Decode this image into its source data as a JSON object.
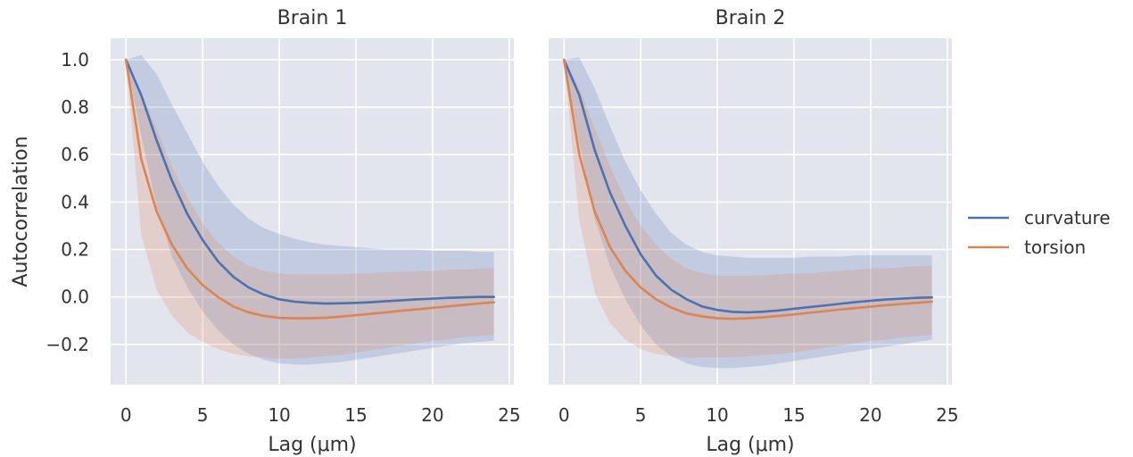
{
  "chart_data": [
    {
      "type": "line",
      "title": "Brain 1",
      "xlabel": "Lag (μm)",
      "ylabel": "Autocorrelation",
      "xlim": [
        -1.0,
        25.3
      ],
      "ylim": [
        -0.37,
        1.09
      ],
      "xticks": [
        0,
        5,
        10,
        15,
        20,
        25
      ],
      "yticks": [
        1.0,
        0.8,
        0.6,
        0.4,
        0.2,
        0.0,
        -0.2
      ],
      "ytick_labels": [
        "1.0",
        "0.8",
        "0.6",
        "0.4",
        "0.2",
        "0.0",
        "−0.2"
      ],
      "grid": true,
      "x": [
        0,
        1,
        2,
        3,
        4,
        5,
        6,
        7,
        8,
        9,
        10,
        11,
        12,
        13,
        14,
        15,
        16,
        17,
        18,
        19,
        20,
        21,
        22,
        23,
        24
      ],
      "series": [
        {
          "name": "curvature",
          "color": "#4c72b0",
          "values": [
            1.0,
            0.85,
            0.66,
            0.49,
            0.35,
            0.24,
            0.15,
            0.085,
            0.04,
            0.01,
            -0.01,
            -0.02,
            -0.025,
            -0.028,
            -0.027,
            -0.025,
            -0.022,
            -0.018,
            -0.014,
            -0.01,
            -0.007,
            -0.004,
            -0.002,
            0.0,
            0.0
          ],
          "band_upper": [
            1.0,
            1.02,
            0.94,
            0.81,
            0.69,
            0.57,
            0.47,
            0.39,
            0.33,
            0.29,
            0.265,
            0.245,
            0.23,
            0.22,
            0.215,
            0.21,
            0.205,
            0.2,
            0.2,
            0.2,
            0.195,
            0.195,
            0.195,
            0.19,
            0.19
          ],
          "band_lower": [
            1.0,
            0.68,
            0.38,
            0.17,
            0.04,
            -0.06,
            -0.14,
            -0.2,
            -0.24,
            -0.265,
            -0.28,
            -0.285,
            -0.285,
            -0.28,
            -0.275,
            -0.265,
            -0.255,
            -0.245,
            -0.235,
            -0.225,
            -0.215,
            -0.205,
            -0.195,
            -0.19,
            -0.185
          ]
        },
        {
          "name": "torsion",
          "color": "#dd8452",
          "values": [
            1.0,
            0.58,
            0.36,
            0.22,
            0.12,
            0.05,
            0.0,
            -0.04,
            -0.065,
            -0.08,
            -0.088,
            -0.09,
            -0.09,
            -0.088,
            -0.083,
            -0.077,
            -0.071,
            -0.065,
            -0.058,
            -0.052,
            -0.046,
            -0.04,
            -0.034,
            -0.028,
            -0.022
          ],
          "band_upper": [
            1.0,
            0.86,
            0.71,
            0.55,
            0.42,
            0.31,
            0.23,
            0.17,
            0.13,
            0.11,
            0.1,
            0.095,
            0.095,
            0.095,
            0.095,
            0.1,
            0.1,
            0.105,
            0.105,
            0.11,
            0.11,
            0.115,
            0.115,
            0.12,
            0.12
          ],
          "band_lower": [
            1.0,
            0.26,
            0.03,
            -0.08,
            -0.15,
            -0.19,
            -0.22,
            -0.24,
            -0.25,
            -0.255,
            -0.26,
            -0.26,
            -0.255,
            -0.25,
            -0.245,
            -0.235,
            -0.225,
            -0.215,
            -0.205,
            -0.195,
            -0.185,
            -0.18,
            -0.17,
            -0.165,
            -0.16
          ]
        }
      ]
    },
    {
      "type": "line",
      "title": "Brain 2",
      "xlabel": "Lag (μm)",
      "ylabel": "",
      "xlim": [
        -1.0,
        25.3
      ],
      "ylim": [
        -0.37,
        1.09
      ],
      "xticks": [
        0,
        5,
        10,
        15,
        20,
        25
      ],
      "grid": true,
      "x": [
        0,
        1,
        2,
        3,
        4,
        5,
        6,
        7,
        8,
        9,
        10,
        11,
        12,
        13,
        14,
        15,
        16,
        17,
        18,
        19,
        20,
        21,
        22,
        23,
        24
      ],
      "series": [
        {
          "name": "curvature",
          "color": "#4c72b0",
          "values": [
            1.0,
            0.85,
            0.62,
            0.44,
            0.3,
            0.18,
            0.09,
            0.03,
            -0.01,
            -0.04,
            -0.055,
            -0.063,
            -0.065,
            -0.062,
            -0.057,
            -0.05,
            -0.043,
            -0.036,
            -0.029,
            -0.022,
            -0.016,
            -0.011,
            -0.007,
            -0.004,
            -0.002
          ],
          "band_upper": [
            1.0,
            1.01,
            0.88,
            0.72,
            0.57,
            0.45,
            0.35,
            0.27,
            0.22,
            0.19,
            0.175,
            0.17,
            0.165,
            0.165,
            0.165,
            0.165,
            0.17,
            0.17,
            0.17,
            0.175,
            0.175,
            0.175,
            0.175,
            0.175,
            0.175
          ],
          "band_lower": [
            1.0,
            0.65,
            0.33,
            0.13,
            -0.01,
            -0.12,
            -0.2,
            -0.25,
            -0.28,
            -0.295,
            -0.3,
            -0.3,
            -0.295,
            -0.29,
            -0.28,
            -0.27,
            -0.26,
            -0.25,
            -0.24,
            -0.23,
            -0.22,
            -0.21,
            -0.2,
            -0.19,
            -0.18
          ]
        },
        {
          "name": "torsion",
          "color": "#dd8452",
          "values": [
            1.0,
            0.6,
            0.36,
            0.21,
            0.11,
            0.04,
            -0.01,
            -0.045,
            -0.07,
            -0.082,
            -0.09,
            -0.092,
            -0.09,
            -0.086,
            -0.08,
            -0.074,
            -0.067,
            -0.06,
            -0.053,
            -0.047,
            -0.041,
            -0.035,
            -0.03,
            -0.025,
            -0.02
          ],
          "band_upper": [
            1.0,
            0.88,
            0.71,
            0.55,
            0.41,
            0.3,
            0.22,
            0.16,
            0.12,
            0.1,
            0.09,
            0.09,
            0.09,
            0.09,
            0.095,
            0.1,
            0.1,
            0.105,
            0.11,
            0.115,
            0.12,
            0.12,
            0.125,
            0.13,
            0.13
          ],
          "band_lower": [
            1.0,
            0.32,
            0.02,
            -0.11,
            -0.18,
            -0.22,
            -0.24,
            -0.25,
            -0.255,
            -0.255,
            -0.255,
            -0.255,
            -0.25,
            -0.245,
            -0.24,
            -0.235,
            -0.225,
            -0.215,
            -0.205,
            -0.195,
            -0.185,
            -0.18,
            -0.17,
            -0.165,
            -0.16
          ]
        }
      ]
    }
  ],
  "legend": {
    "placement": "right",
    "entries": [
      {
        "label": "curvature",
        "color": "#4c72b0"
      },
      {
        "label": "torsion",
        "color": "#dd8452"
      }
    ]
  }
}
